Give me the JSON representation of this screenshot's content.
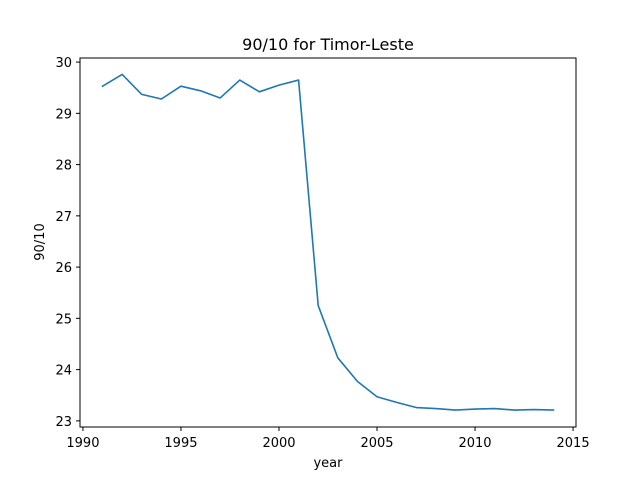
{
  "chart_data": {
    "type": "line",
    "title": "90/10 for Timor-Leste",
    "xlabel": "year",
    "ylabel": "90/10",
    "xlim": [
      1989.85,
      2015.15
    ],
    "ylim": [
      22.88,
      30.08
    ],
    "x_ticks": [
      1990,
      1995,
      2000,
      2005,
      2010,
      2015
    ],
    "y_ticks": [
      23,
      24,
      25,
      26,
      27,
      28,
      29,
      30
    ],
    "grid": false,
    "legend": "none",
    "colors": {
      "line": "#1f77b4",
      "axis": "#000000",
      "background": "#ffffff"
    },
    "series": [
      {
        "x": [
          1991,
          1992,
          1993,
          1994,
          1995,
          1996,
          1997,
          1998,
          1999,
          2000,
          2001,
          2002,
          2003,
          2004,
          2005,
          2006,
          2007,
          2008,
          2009,
          2010,
          2011,
          2012,
          2013,
          2014
        ],
        "values": [
          29.53,
          29.76,
          29.37,
          29.28,
          29.53,
          29.44,
          29.3,
          29.65,
          29.42,
          29.55,
          29.65,
          25.25,
          24.23,
          23.77,
          23.47,
          23.36,
          23.26,
          23.24,
          23.21,
          23.23,
          23.24,
          23.21,
          23.22,
          23.21
        ]
      }
    ]
  }
}
